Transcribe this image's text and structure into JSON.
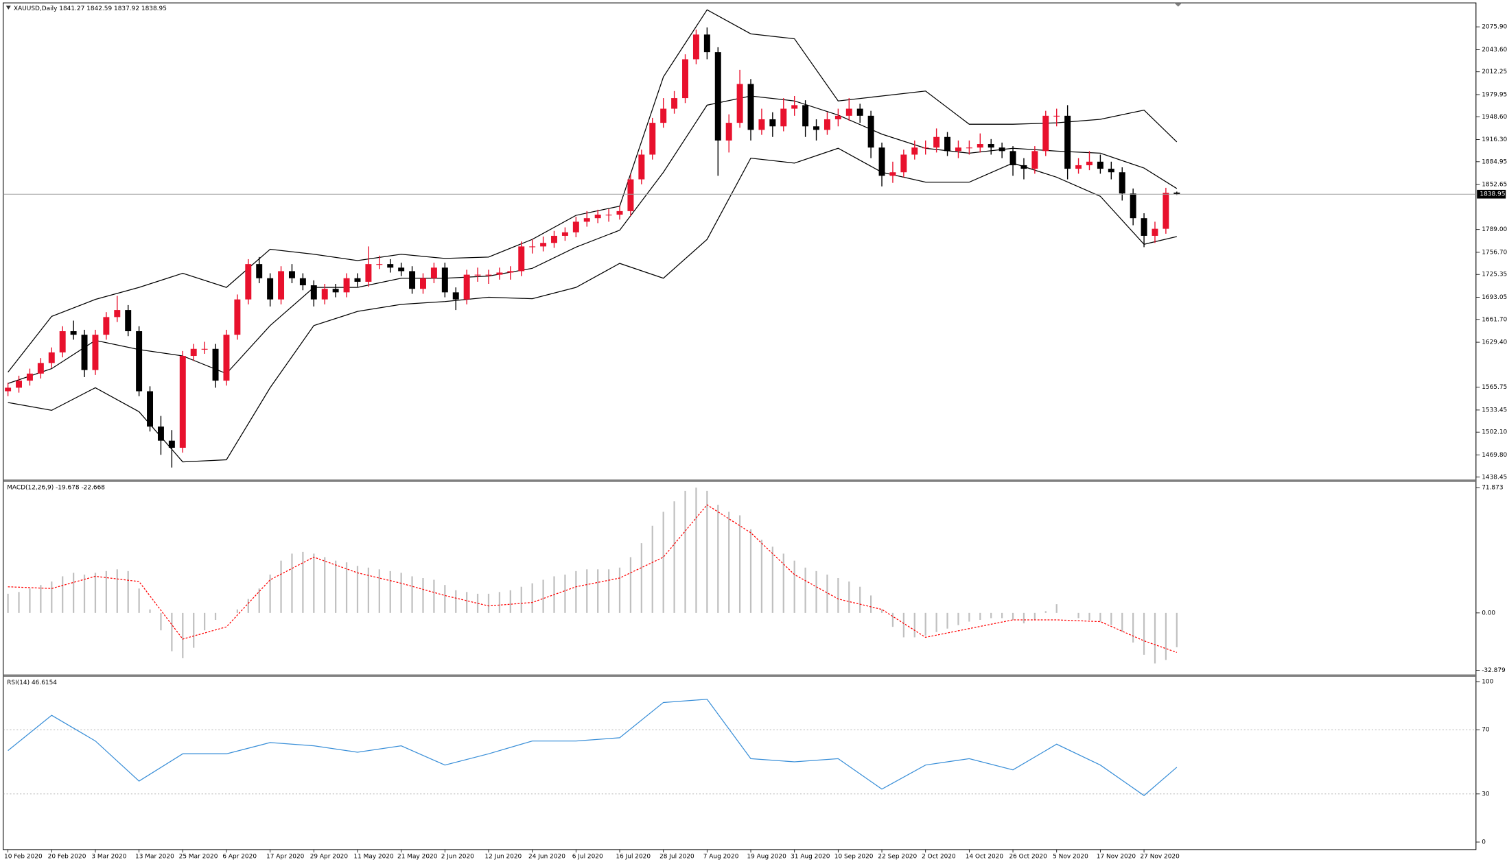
{
  "chart_data": [
    {
      "type": "candlestick",
      "title": "XAUUSD,Daily  1841.27 1842.59 1837.92 1838.95",
      "up_color": "#e8112d",
      "down_color": "#000000",
      "ylim": [
        1435.7,
        2107.1
      ],
      "yticks": [
        {
          "value": 2075.9,
          "label": "2075.90"
        },
        {
          "value": 2043.6,
          "label": "2043.60"
        },
        2012.25,
        1979.95,
        {
          "value": 1948.6,
          "label": "1948.60"
        },
        {
          "value": 1916.3,
          "label": "1916.30"
        },
        1884.95,
        1852.65,
        {
          "value": 1789.0,
          "label": "1789.00"
        },
        {
          "value": 1756.7,
          "label": "1756.70"
        },
        1725.35,
        1693.05,
        {
          "value": 1661.7,
          "label": "1661.70"
        },
        {
          "value": 1629.4,
          "label": "1629.40"
        },
        1565.75,
        1533.45,
        {
          "value": 1502.1,
          "label": "1502.10"
        },
        {
          "value": 1469.8,
          "label": "1469.80"
        },
        1438.45
      ],
      "current_price": 1838.95,
      "ohlc": [
        [
          1560,
          1572,
          1553,
          1565
        ],
        [
          1565,
          1582,
          1558,
          1575
        ],
        [
          1575,
          1592,
          1568,
          1585
        ],
        [
          1585,
          1607,
          1578,
          1600
        ],
        [
          1600,
          1622,
          1593,
          1615
        ],
        [
          1615,
          1652,
          1608,
          1645
        ],
        [
          1645,
          1660,
          1633,
          1640
        ],
        [
          1640,
          1647,
          1580,
          1590
        ],
        [
          1590,
          1647,
          1583,
          1640
        ],
        [
          1640,
          1672,
          1633,
          1665
        ],
        [
          1665,
          1695,
          1658,
          1675
        ],
        [
          1675,
          1682,
          1638,
          1645
        ],
        [
          1645,
          1652,
          1553,
          1560
        ],
        [
          1560,
          1567,
          1503,
          1510
        ],
        [
          1510,
          1525,
          1470,
          1490
        ],
        [
          1490,
          1505,
          1452,
          1480
        ],
        [
          1480,
          1617,
          1473,
          1610
        ],
        [
          1610,
          1627,
          1603,
          1620
        ],
        [
          1620,
          1630,
          1613,
          1620
        ],
        [
          1620,
          1627,
          1565,
          1575
        ],
        [
          1575,
          1647,
          1568,
          1640
        ],
        [
          1640,
          1697,
          1633,
          1690
        ],
        [
          1690,
          1747,
          1683,
          1740
        ],
        [
          1740,
          1750,
          1713,
          1720
        ],
        [
          1720,
          1727,
          1680,
          1690
        ],
        [
          1690,
          1737,
          1683,
          1730
        ],
        [
          1730,
          1740,
          1713,
          1720
        ],
        [
          1720,
          1727,
          1703,
          1710
        ],
        [
          1710,
          1717,
          1680,
          1690
        ],
        [
          1690,
          1712,
          1683,
          1705
        ],
        [
          1705,
          1712,
          1693,
          1700
        ],
        [
          1700,
          1727,
          1693,
          1720
        ],
        [
          1720,
          1727,
          1708,
          1715
        ],
        [
          1715,
          1765,
          1708,
          1740
        ],
        [
          1740,
          1752,
          1733,
          1740
        ],
        [
          1740,
          1747,
          1728,
          1735
        ],
        [
          1735,
          1742,
          1723,
          1730
        ],
        [
          1730,
          1737,
          1698,
          1705
        ],
        [
          1705,
          1727,
          1698,
          1720
        ],
        [
          1720,
          1742,
          1713,
          1735
        ],
        [
          1735,
          1742,
          1693,
          1700
        ],
        [
          1700,
          1707,
          1675,
          1690
        ],
        [
          1690,
          1732,
          1683,
          1725
        ],
        [
          1725,
          1735,
          1715,
          1725
        ],
        [
          1725,
          1732,
          1712,
          1725
        ],
        [
          1725,
          1735,
          1718,
          1728
        ],
        [
          1728,
          1737,
          1718,
          1730
        ],
        [
          1730,
          1772,
          1723,
          1765
        ],
        [
          1765,
          1775,
          1755,
          1765
        ],
        [
          1765,
          1779,
          1758,
          1770
        ],
        [
          1770,
          1787,
          1763,
          1780
        ],
        [
          1780,
          1792,
          1773,
          1785
        ],
        [
          1785,
          1807,
          1778,
          1800
        ],
        [
          1800,
          1815,
          1793,
          1805
        ],
        [
          1805,
          1817,
          1798,
          1810
        ],
        [
          1810,
          1818,
          1800,
          1810
        ],
        [
          1810,
          1822,
          1803,
          1815
        ],
        [
          1815,
          1867,
          1808,
          1860
        ],
        [
          1860,
          1902,
          1853,
          1895
        ],
        [
          1895,
          1947,
          1888,
          1940
        ],
        [
          1940,
          1975,
          1933,
          1960
        ],
        [
          1960,
          1985,
          1953,
          1975
        ],
        [
          1975,
          2037,
          1968,
          2030
        ],
        [
          2030,
          2072,
          2023,
          2065
        ],
        [
          2065,
          2075,
          2030,
          2040
        ],
        [
          2040,
          2047,
          1865,
          1915
        ],
        [
          1915,
          1952,
          1898,
          1940
        ],
        [
          1940,
          2015,
          1933,
          1995
        ],
        [
          1995,
          2002,
          1915,
          1930
        ],
        [
          1930,
          1960,
          1923,
          1945
        ],
        [
          1945,
          1955,
          1920,
          1935
        ],
        [
          1935,
          1975,
          1928,
          1960
        ],
        [
          1960,
          1978,
          1950,
          1965
        ],
        [
          1965,
          1972,
          1920,
          1935
        ],
        [
          1935,
          1945,
          1915,
          1930
        ],
        [
          1930,
          1955,
          1923,
          1945
        ],
        [
          1945,
          1960,
          1935,
          1950
        ],
        [
          1950,
          1975,
          1943,
          1960
        ],
        [
          1960,
          1967,
          1940,
          1950
        ],
        [
          1950,
          1957,
          1890,
          1905
        ],
        [
          1905,
          1912,
          1850,
          1865
        ],
        [
          1865,
          1885,
          1855,
          1870
        ],
        [
          1870,
          1902,
          1863,
          1895
        ],
        [
          1895,
          1915,
          1888,
          1905
        ],
        [
          1905,
          1915,
          1895,
          1905
        ],
        [
          1905,
          1932,
          1898,
          1920
        ],
        [
          1920,
          1927,
          1893,
          1900
        ],
        [
          1900,
          1915,
          1890,
          1905
        ],
        [
          1905,
          1915,
          1895,
          1905
        ],
        [
          1905,
          1925,
          1898,
          1910
        ],
        [
          1910,
          1917,
          1895,
          1905
        ],
        [
          1905,
          1912,
          1890,
          1900
        ],
        [
          1900,
          1907,
          1865,
          1880
        ],
        [
          1880,
          1890,
          1860,
          1875
        ],
        [
          1875,
          1907,
          1868,
          1900
        ],
        [
          1900,
          1957,
          1893,
          1950
        ],
        [
          1950,
          1960,
          1935,
          1950
        ],
        [
          1950,
          1965,
          1860,
          1875
        ],
        [
          1875,
          1890,
          1868,
          1880
        ],
        [
          1880,
          1900,
          1873,
          1885
        ],
        [
          1885,
          1895,
          1868,
          1875
        ],
        [
          1875,
          1885,
          1860,
          1870
        ],
        [
          1870,
          1877,
          1830,
          1840
        ],
        [
          1840,
          1847,
          1795,
          1805
        ],
        [
          1805,
          1812,
          1764,
          1780
        ],
        [
          1780,
          1800,
          1770,
          1790
        ],
        [
          1790,
          1848,
          1783,
          1841
        ],
        [
          1841.27,
          1842.59,
          1837.92,
          1838.95
        ]
      ],
      "series": [
        {
          "color": "#000000",
          "x": [
            0,
            4,
            8,
            12,
            16,
            20,
            24,
            28,
            32,
            36,
            40,
            44,
            48,
            52,
            56,
            60,
            64,
            68,
            72,
            76,
            80,
            84,
            88,
            92,
            96,
            100,
            104,
            107
          ],
          "values": [
            1587,
            1666,
            1690,
            1707,
            1727,
            1707,
            1761,
            1754,
            1745,
            1754,
            1748,
            1750,
            1775,
            1809,
            1822,
            2005,
            2100,
            2066,
            2059,
            1971,
            1978,
            1985,
            1938,
            1938,
            1940,
            1945,
            1958,
            1913
          ]
        },
        {
          "color": "#000000",
          "x": [
            0,
            4,
            8,
            12,
            16,
            20,
            24,
            28,
            32,
            36,
            40,
            44,
            48,
            52,
            56,
            60,
            64,
            68,
            72,
            76,
            80,
            84,
            88,
            92,
            96,
            100,
            104,
            107
          ],
          "values": [
            1571,
            1592,
            1632,
            1619,
            1610,
            1585,
            1653,
            1707,
            1707,
            1720,
            1720,
            1723,
            1734,
            1764,
            1788,
            1870,
            1965,
            1978,
            1971,
            1951,
            1924,
            1904,
            1897,
            1904,
            1900,
            1897,
            1876,
            1847
          ]
        },
        {
          "color": "#000000",
          "x": [
            0,
            4,
            8,
            12,
            16,
            20,
            24,
            28,
            32,
            36,
            40,
            44,
            48,
            52,
            56,
            60,
            64,
            68,
            72,
            76,
            80,
            84,
            88,
            92,
            96,
            100,
            104,
            107
          ],
          "values": [
            1544,
            1533,
            1565,
            1531,
            1460,
            1463,
            1565,
            1653,
            1673,
            1683,
            1687,
            1693,
            1691,
            1707,
            1741,
            1720,
            1775,
            1890,
            1883,
            1904,
            1870,
            1856,
            1856,
            1883,
            1863,
            1836,
            1768,
            1779
          ]
        }
      ]
    },
    {
      "type": "macd",
      "title": "MACD(12,26,9) -19.678 -22.668",
      "ylim": [
        -35.0,
        74.6
      ],
      "yticks": [
        71.873,
        {
          "value": 0,
          "label": "0.00"
        },
        -32.879
      ],
      "hist_color": "#c0c0c0",
      "values": [
        11,
        12,
        14,
        16,
        18,
        21,
        23,
        22,
        23,
        24,
        25,
        24,
        14,
        2,
        -10,
        -22,
        -26,
        -20,
        -10,
        -4,
        0,
        2,
        8,
        14,
        22,
        30,
        34,
        35,
        34,
        32,
        30,
        29,
        27,
        26,
        25,
        24,
        23,
        21,
        20,
        19,
        16,
        13,
        12,
        11,
        11,
        12,
        13,
        15,
        17,
        19,
        21,
        22,
        24,
        25,
        25,
        25,
        26,
        32,
        40,
        50,
        58,
        64,
        70,
        71.873,
        70,
        62,
        58,
        56,
        48,
        42,
        38,
        34,
        30,
        26,
        24,
        22,
        20,
        18,
        15,
        10,
        2,
        -8,
        -14,
        -14,
        -13,
        -11,
        -9,
        -7,
        -5,
        -4,
        -3,
        -3,
        -4,
        -6,
        -4,
        1,
        5,
        0,
        -3,
        -4,
        -5,
        -7,
        -11,
        -17,
        -24,
        -29,
        -27,
        -19.678
      ],
      "series": [
        {
          "color": "#ff0000",
          "dashed": true,
          "x": [
            0,
            4,
            8,
            12,
            16,
            20,
            24,
            28,
            32,
            36,
            40,
            44,
            48,
            52,
            56,
            60,
            64,
            68,
            72,
            76,
            80,
            84,
            88,
            92,
            96,
            100,
            104,
            107
          ],
          "values": [
            15,
            14,
            21,
            18,
            -15,
            -8,
            19,
            32,
            23,
            17,
            10,
            4,
            6,
            15,
            20,
            32,
            62,
            46,
            22,
            8,
            2,
            -14,
            -9,
            -4,
            -4,
            -5,
            -16,
            -22.668
          ]
        }
      ]
    },
    {
      "type": "line",
      "title": "RSI(14) 46.6154",
      "ylim": [
        -4.1,
        102.4
      ],
      "yticks": [
        100,
        70,
        30,
        0
      ],
      "levels": [
        70,
        30
      ],
      "series": [
        {
          "color": "#3a8fd8",
          "x": [
            0,
            4,
            8,
            12,
            16,
            20,
            24,
            28,
            32,
            36,
            40,
            44,
            48,
            52,
            56,
            60,
            64,
            68,
            72,
            76,
            80,
            84,
            88,
            92,
            96,
            100,
            104,
            107
          ],
          "values": [
            57,
            79,
            63,
            38,
            55,
            55,
            62,
            60,
            56,
            60,
            48,
            55,
            63,
            63,
            65,
            87,
            89,
            52,
            50,
            52,
            33,
            48,
            52,
            45,
            61,
            48,
            29,
            46.6154
          ]
        }
      ],
      "xlim": [
        0,
        107
      ],
      "xticks": [
        {
          "value": 0,
          "label": "10 Feb 2020"
        },
        {
          "value": 4,
          "label": "20 Feb 2020"
        },
        {
          "value": 8,
          "label": "3 Mar 2020"
        },
        {
          "value": 12,
          "label": "13 Mar 2020"
        },
        {
          "value": 16,
          "label": "25 Mar 2020"
        },
        {
          "value": 20,
          "label": "6 Apr 2020"
        },
        {
          "value": 24,
          "label": "17 Apr 2020"
        },
        {
          "value": 28,
          "label": "29 Apr 2020"
        },
        {
          "value": 32,
          "label": "11 May 2020"
        },
        {
          "value": 36,
          "label": "21 May 2020"
        },
        {
          "value": 40,
          "label": "2 Jun 2020"
        },
        {
          "value": 44,
          "label": "12 Jun 2020"
        },
        {
          "value": 48,
          "label": "24 Jun 2020"
        },
        {
          "value": 52,
          "label": "6 Jul 2020"
        },
        {
          "value": 56,
          "label": "16 Jul 2020"
        },
        {
          "value": 60,
          "label": "28 Jul 2020"
        },
        {
          "value": 64,
          "label": "7 Aug 2020"
        },
        {
          "value": 68,
          "label": "19 Aug 2020"
        },
        {
          "value": 72,
          "label": "31 Aug 2020"
        },
        {
          "value": 76,
          "label": "10 Sep 2020"
        },
        {
          "value": 80,
          "label": "22 Sep 2020"
        },
        {
          "value": 84,
          "label": "2 Oct 2020"
        },
        {
          "value": 88,
          "label": "14 Oct 2020"
        },
        {
          "value": 92,
          "label": "26 Oct 2020"
        },
        {
          "value": 96,
          "label": "5 Nov 2020"
        },
        {
          "value": 100,
          "label": "17 Nov 2020"
        },
        {
          "value": 104,
          "label": "27 Nov 2020"
        }
      ]
    }
  ]
}
